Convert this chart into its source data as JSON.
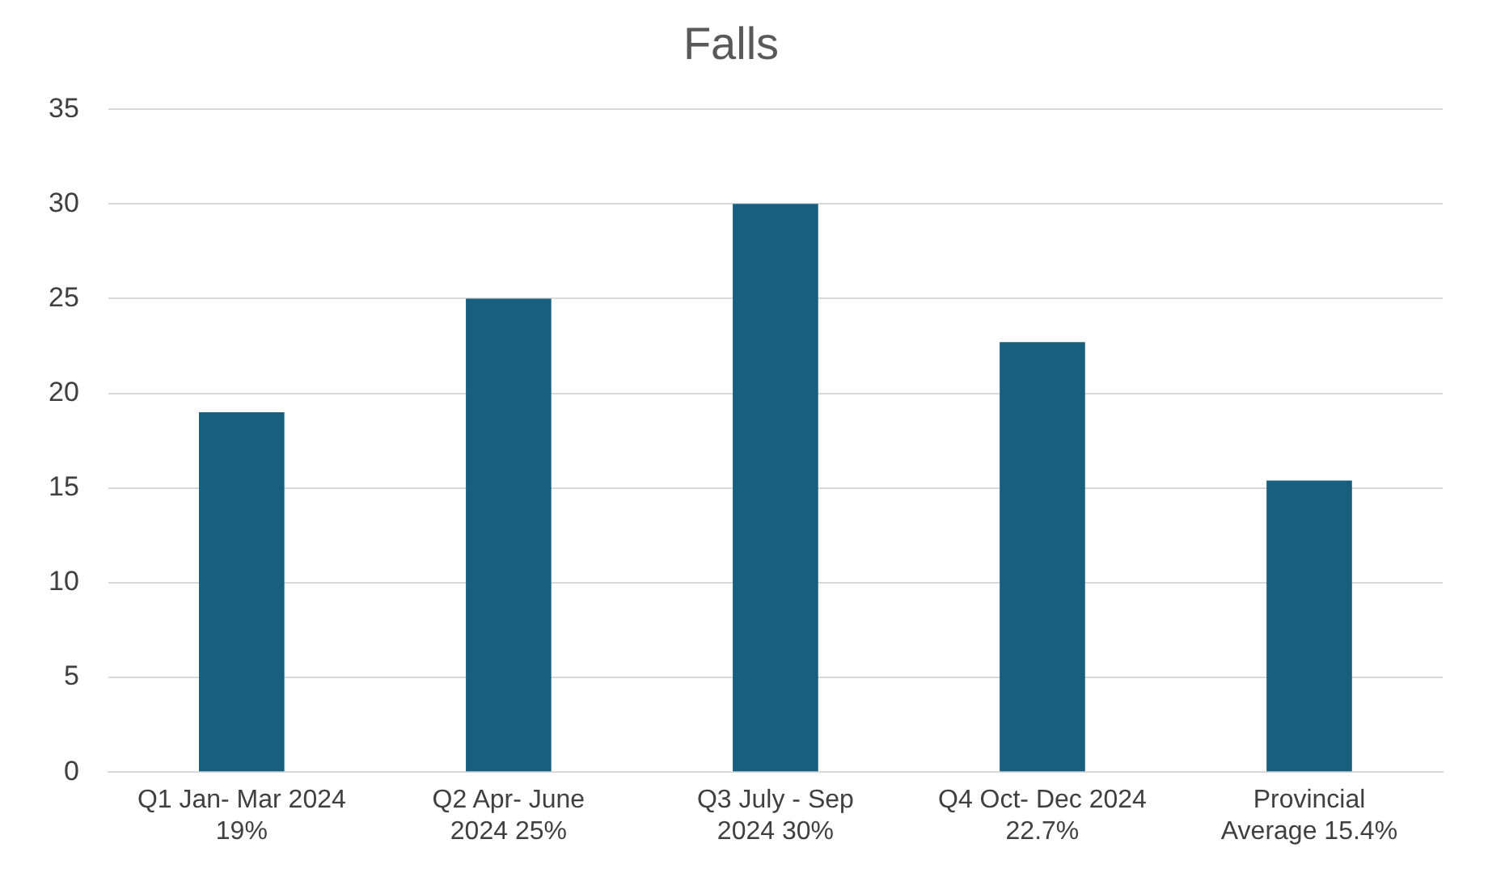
{
  "chart_data": {
    "type": "bar",
    "title": "Falls",
    "categories": [
      "Q1 Jan- Mar 2024 19%",
      "Q2 Apr- June 2024 25%",
      "Q3 July - Sep 2024 30%",
      "Q4 Oct- Dec 2024 22.7%",
      "Provincial Average 15.4%"
    ],
    "values": [
      19,
      25,
      30,
      22.7,
      15.4
    ],
    "color": "#175e7f",
    "ylim": [
      0,
      35
    ],
    "yticks": [
      0,
      5,
      10,
      15,
      20,
      25,
      30,
      35
    ],
    "grid": "y",
    "legend": false
  }
}
